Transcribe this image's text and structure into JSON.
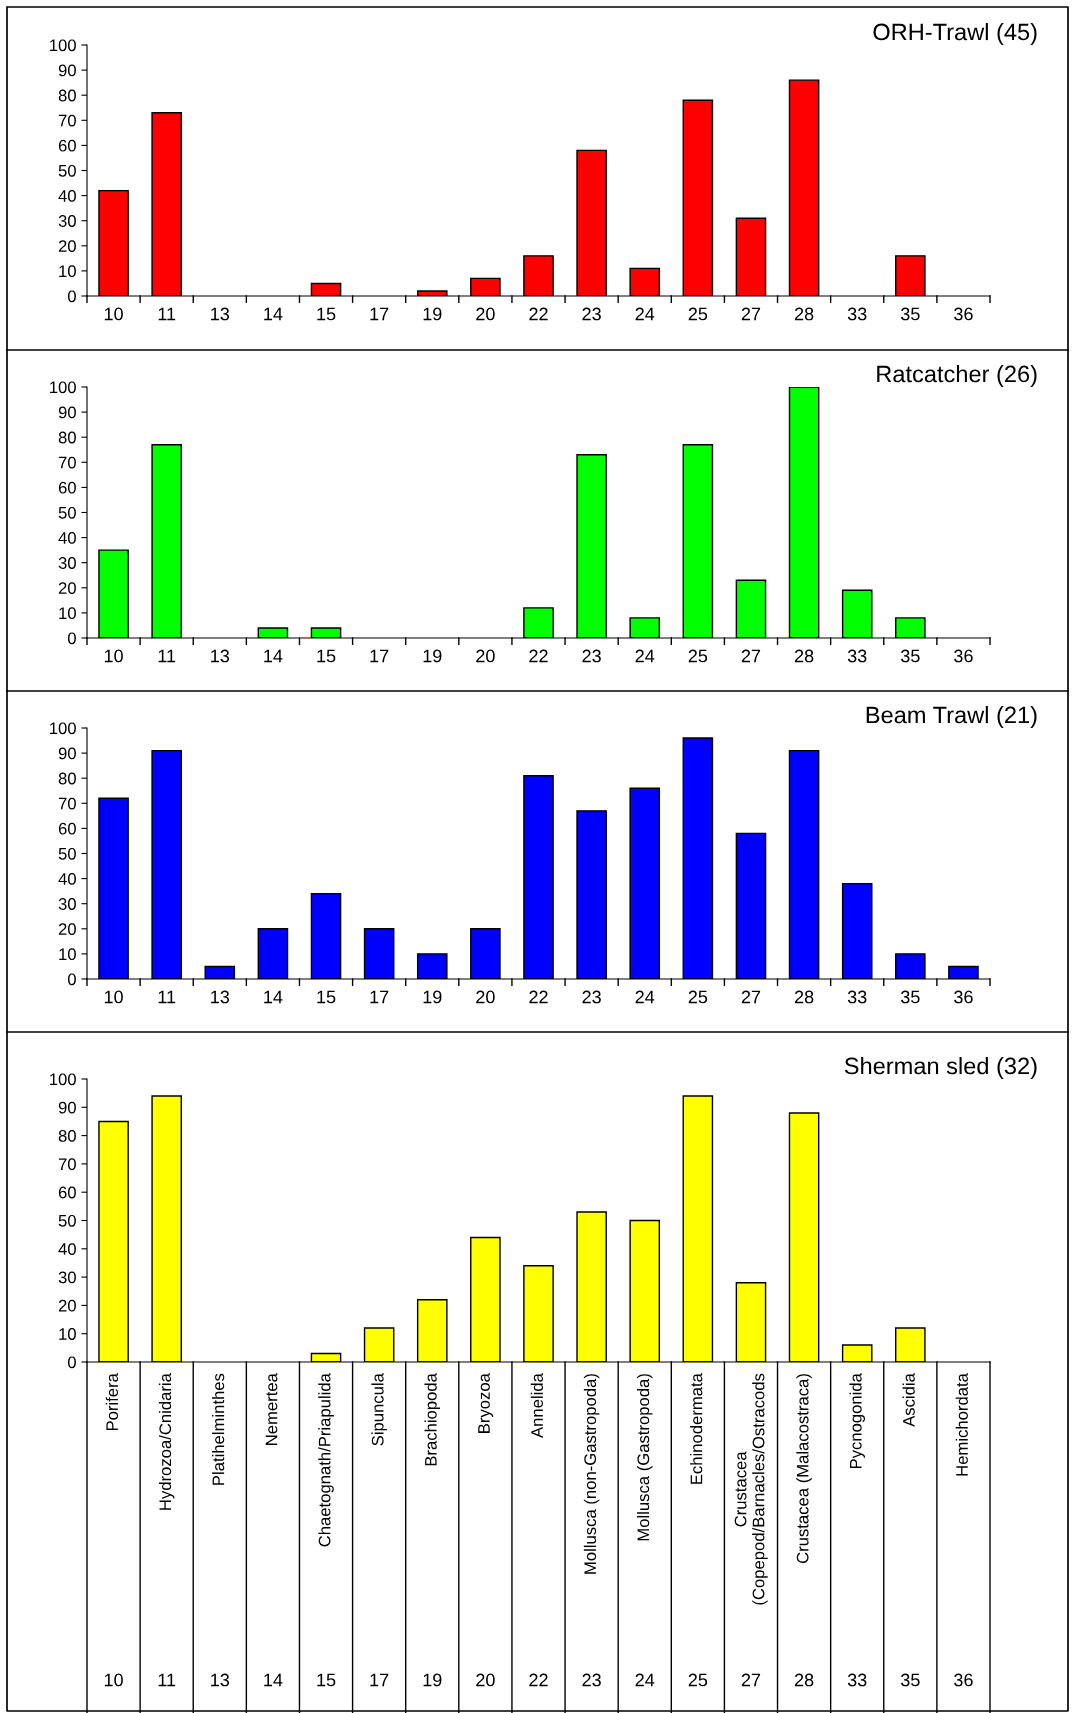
{
  "chart_data": [
    {
      "type": "bar",
      "title": "ORH-Trawl (45)",
      "categories": [
        "10",
        "11",
        "13",
        "14",
        "15",
        "17",
        "19",
        "20",
        "22",
        "23",
        "24",
        "25",
        "27",
        "28",
        "33",
        "35",
        "36"
      ],
      "values": [
        42,
        73,
        0,
        0,
        5,
        0,
        2,
        7,
        16,
        58,
        11,
        78,
        31,
        86,
        0,
        16,
        0
      ],
      "color": "#ff0000",
      "ylim": [
        0,
        100
      ],
      "yticks": [
        0,
        10,
        20,
        30,
        40,
        50,
        60,
        70,
        80,
        90,
        100
      ]
    },
    {
      "type": "bar",
      "title": "Ratcatcher (26)",
      "categories": [
        "10",
        "11",
        "13",
        "14",
        "15",
        "17",
        "19",
        "20",
        "22",
        "23",
        "24",
        "25",
        "27",
        "28",
        "33",
        "35",
        "36"
      ],
      "values": [
        35,
        77,
        0,
        4,
        4,
        0,
        0,
        0,
        12,
        73,
        8,
        77,
        23,
        100,
        19,
        8,
        0
      ],
      "color": "#00ff00",
      "ylim": [
        0,
        100
      ],
      "yticks": [
        0,
        10,
        20,
        30,
        40,
        50,
        60,
        70,
        80,
        90,
        100
      ]
    },
    {
      "type": "bar",
      "title": "Beam Trawl (21)",
      "categories": [
        "10",
        "11",
        "13",
        "14",
        "15",
        "17",
        "19",
        "20",
        "22",
        "23",
        "24",
        "25",
        "27",
        "28",
        "33",
        "35",
        "36"
      ],
      "values": [
        72,
        91,
        5,
        20,
        34,
        20,
        10,
        20,
        81,
        67,
        76,
        96,
        58,
        91,
        38,
        10,
        5
      ],
      "color": "#0000ff",
      "ylim": [
        0,
        100
      ],
      "yticks": [
        0,
        10,
        20,
        30,
        40,
        50,
        60,
        70,
        80,
        90,
        100
      ]
    },
    {
      "type": "bar",
      "title": "Sherman sled (32)",
      "categories": [
        "Porifera",
        "Hydrozoa/Cnidaria",
        "Platihelminthes",
        "Nemertea",
        "Chaetognath/Priapulida",
        "Sipuncula",
        "Brachiopoda",
        "Bryozoa",
        "Annelida",
        "Mollusca (non-Gastropoda)",
        "Mollusca (Gastropoda)",
        "Echinodermata",
        "Crustacea\n(Copepod/Barnacles/Ostracods",
        "Crustacea (Malacostraca)",
        "Pycnogonida",
        "Ascidia",
        "Hemichordata"
      ],
      "values": [
        85,
        94,
        0,
        0,
        3,
        12,
        22,
        44,
        34,
        53,
        50,
        94,
        28,
        88,
        6,
        12,
        0
      ],
      "color": "#ffff00",
      "ylim": [
        0,
        100
      ],
      "yticks": [
        0,
        10,
        20,
        30,
        40,
        50,
        60,
        70,
        80,
        90,
        100
      ],
      "annotations": [
        "10",
        "11",
        "13",
        "14",
        "15",
        "17",
        "19",
        "20",
        "22",
        "23",
        "24",
        "25",
        "27",
        "28",
        "33",
        "35",
        "36"
      ]
    }
  ]
}
